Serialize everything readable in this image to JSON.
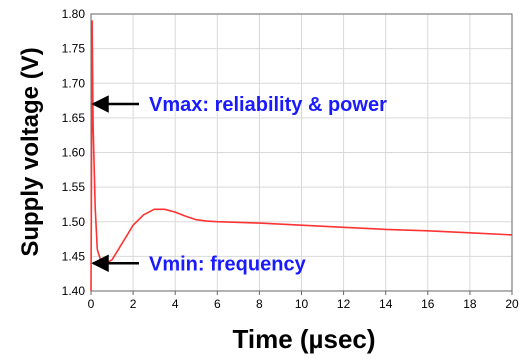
{
  "chart_data": {
    "type": "line",
    "title": "",
    "xlabel": "Time (µsec)",
    "ylabel": "Supply voltage (V)",
    "xlim": [
      0,
      20
    ],
    "ylim": [
      1.4,
      1.8
    ],
    "x_ticks": [
      "0",
      "2",
      "4",
      "6",
      "8",
      "10",
      "12",
      "14",
      "16",
      "18",
      "20"
    ],
    "y_ticks": [
      "1.80",
      "1.75",
      "1.70",
      "1.65",
      "1.60",
      "1.55",
      "1.50",
      "1.45",
      "1.40"
    ],
    "grid": true,
    "series": [
      {
        "color": "#ff3333",
        "x": [
          0,
          0.05,
          0.1,
          0.2,
          0.3,
          0.5,
          0.7,
          1.0,
          1.3,
          1.6,
          2.0,
          2.5,
          3.0,
          3.5,
          4.0,
          4.5,
          5.0,
          5.5,
          6,
          8,
          10,
          12,
          14,
          16,
          18,
          20
        ],
        "y": [
          1.4,
          1.79,
          1.64,
          1.52,
          1.46,
          1.44,
          1.44,
          1.445,
          1.46,
          1.475,
          1.495,
          1.51,
          1.518,
          1.518,
          1.514,
          1.508,
          1.503,
          1.501,
          1.5,
          1.498,
          1.495,
          1.492,
          1.489,
          1.487,
          1.484,
          1.481
        ]
      }
    ],
    "annotations": [
      {
        "text": "Vmax: reliability & power",
        "x": 0,
        "y": 1.67,
        "color": "#1a1aff"
      },
      {
        "text": "Vmin: frequency",
        "x": 0,
        "y": 1.44,
        "color": "#1a1aff"
      }
    ]
  }
}
